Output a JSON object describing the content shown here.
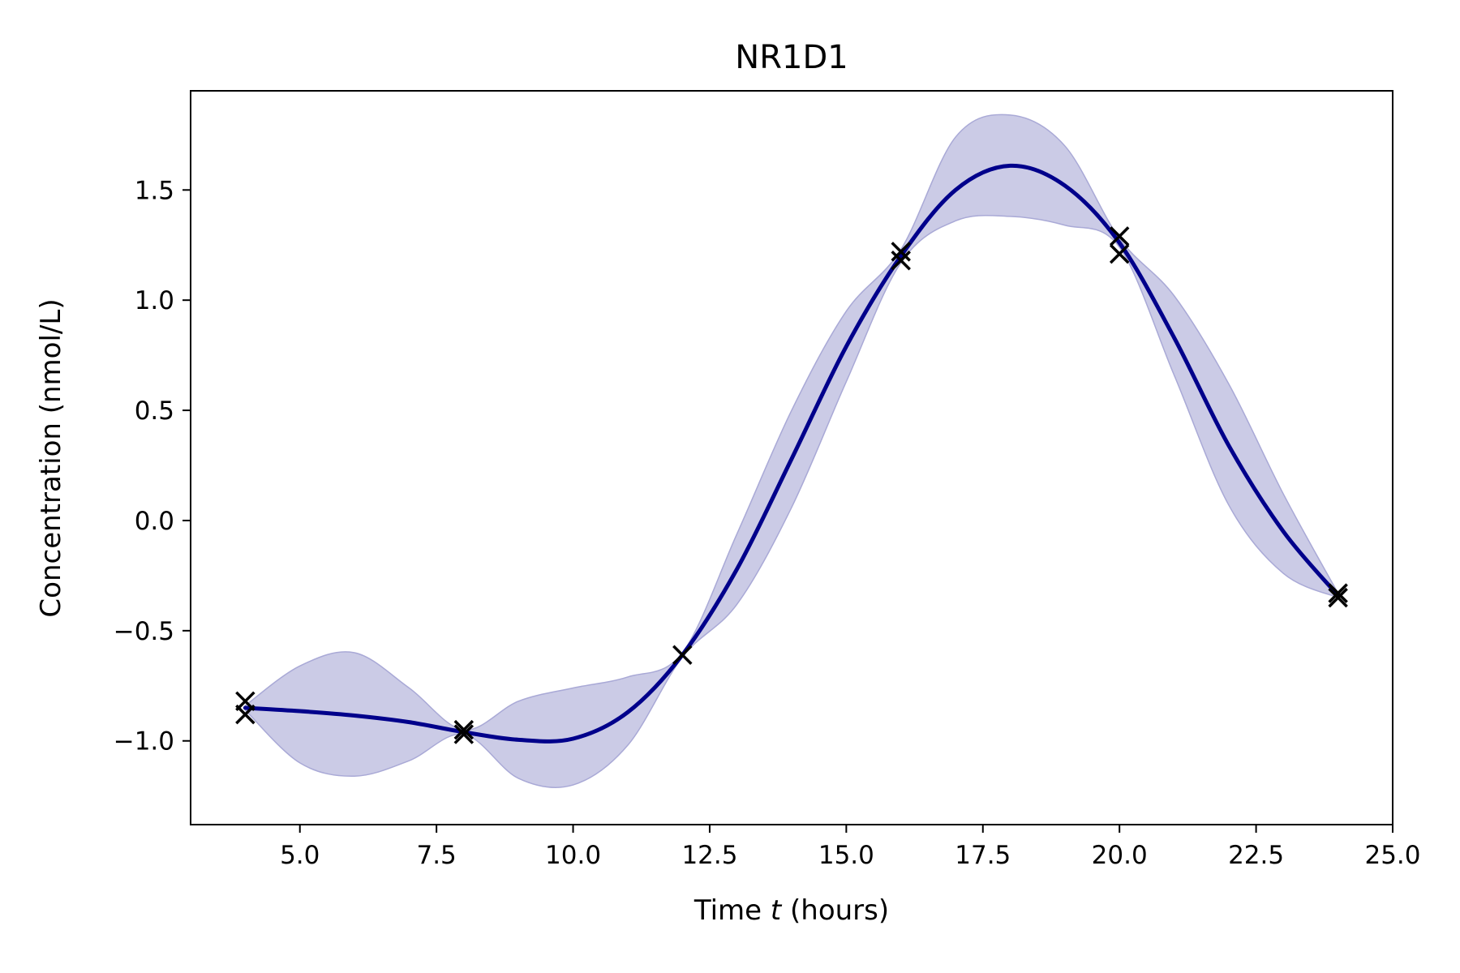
{
  "chart_data": {
    "type": "line",
    "title": "NR1D1",
    "xlabel": "Time t (hours)",
    "xlabel_parts": {
      "before": "Time ",
      "italic": "t",
      "after": " (hours)"
    },
    "ylabel": "Concentration (nmol/L)",
    "xlim": [
      3,
      25
    ],
    "ylim": [
      -1.38,
      1.95
    ],
    "x_ticks": [
      5.0,
      7.5,
      10.0,
      12.5,
      15.0,
      17.5,
      20.0,
      22.5,
      25.0
    ],
    "x_tick_labels": [
      "5.0",
      "7.5",
      "10.0",
      "12.5",
      "15.0",
      "17.5",
      "20.0",
      "22.5",
      "25.0"
    ],
    "y_ticks": [
      -1.0,
      -0.5,
      0.0,
      0.5,
      1.0,
      1.5
    ],
    "y_tick_labels": [
      "−1.0",
      "−0.5",
      "0.0",
      "0.5",
      "1.0",
      "1.5"
    ],
    "grid": false,
    "legend": "none",
    "colors": {
      "mean_line": "#00008b",
      "band_fill": "#cbcbe6",
      "band_edge": "#a9a9d6",
      "markers": "#000000"
    },
    "series": [
      {
        "kind": "mean",
        "x": [
          4.0,
          5.0,
          6.0,
          7.0,
          8.0,
          9.0,
          10.0,
          11.0,
          12.0,
          13.0,
          14.0,
          15.0,
          16.0,
          17.0,
          18.0,
          19.0,
          20.0,
          21.0,
          22.0,
          23.0,
          24.0
        ],
        "y": [
          -0.85,
          -0.865,
          -0.885,
          -0.915,
          -0.96,
          -0.995,
          -0.99,
          -0.87,
          -0.61,
          -0.22,
          0.28,
          0.79,
          1.2,
          1.5,
          1.61,
          1.52,
          1.26,
          0.83,
          0.34,
          -0.05,
          -0.34
        ]
      },
      {
        "kind": "confidence_band",
        "x": [
          4.0,
          5.0,
          6.0,
          7.0,
          8.0,
          9.0,
          10.0,
          11.0,
          12.0,
          13.0,
          14.0,
          15.0,
          16.0,
          17.0,
          18.0,
          19.0,
          20.0,
          21.0,
          22.0,
          23.0,
          24.0
        ],
        "upper": [
          -0.84,
          -0.66,
          -0.6,
          -0.76,
          -0.95,
          -0.82,
          -0.76,
          -0.71,
          -0.6,
          -0.06,
          0.5,
          0.95,
          1.23,
          1.74,
          1.84,
          1.7,
          1.28,
          1.02,
          0.62,
          0.12,
          -0.33
        ],
        "lower": [
          -0.86,
          -1.1,
          -1.16,
          -1.09,
          -0.97,
          -1.17,
          -1.2,
          -1.02,
          -0.62,
          -0.38,
          0.06,
          0.63,
          1.17,
          1.36,
          1.38,
          1.34,
          1.24,
          0.66,
          0.07,
          -0.24,
          -0.35
        ]
      },
      {
        "kind": "observations",
        "marker": "x",
        "points": [
          [
            4.0,
            -0.82
          ],
          [
            4.0,
            -0.88
          ],
          [
            8.0,
            -0.95
          ],
          [
            8.0,
            -0.97
          ],
          [
            12.0,
            -0.61
          ],
          [
            16.0,
            1.22
          ],
          [
            16.0,
            1.18
          ],
          [
            20.0,
            1.29
          ],
          [
            20.0,
            1.21
          ],
          [
            24.0,
            -0.33
          ],
          [
            24.0,
            -0.35
          ]
        ]
      }
    ]
  }
}
